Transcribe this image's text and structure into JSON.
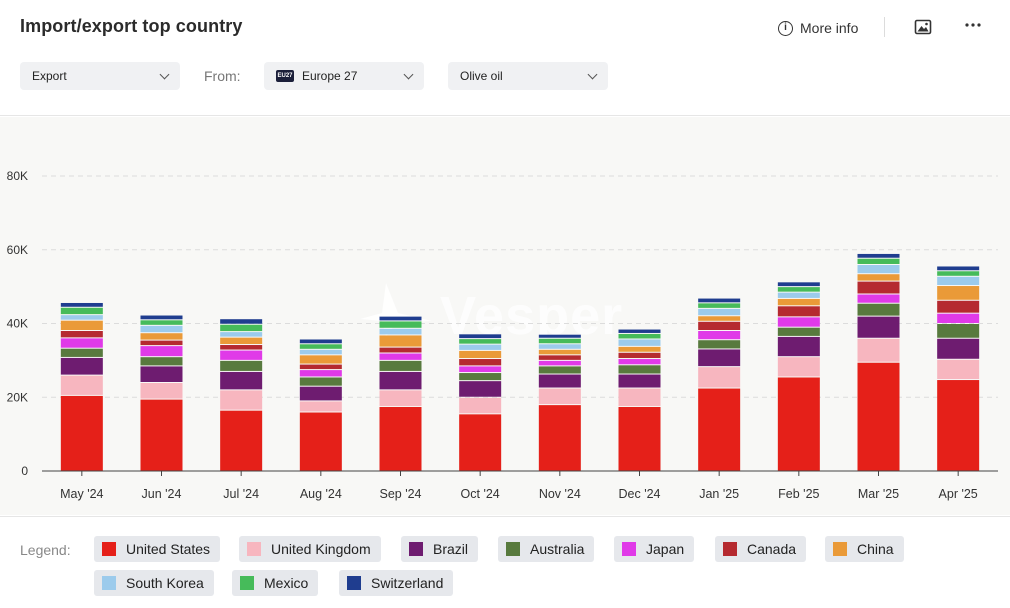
{
  "header": {
    "title": "Import/export top country",
    "more_info_label": "More info",
    "info_icon": "info-icon",
    "image_icon": "image-icon",
    "more_icon": "more-icon"
  },
  "filters": {
    "flow": "Export",
    "from_label": "From:",
    "origin_badge": "EU27",
    "origin": "Europe 27",
    "product": "Olive oil"
  },
  "watermark": "Vesper",
  "legend": {
    "label": "Legend:",
    "items": [
      {
        "name": "United States",
        "color": "#e52019"
      },
      {
        "name": "United Kingdom",
        "color": "#f7b6bf"
      },
      {
        "name": "Brazil",
        "color": "#6e1c70"
      },
      {
        "name": "Australia",
        "color": "#587a3e"
      },
      {
        "name": "Japan",
        "color": "#e03ae8"
      },
      {
        "name": "Canada",
        "color": "#b52a30"
      },
      {
        "name": "China",
        "color": "#ea9a38"
      },
      {
        "name": "South Korea",
        "color": "#9ccbec"
      },
      {
        "name": "Mexico",
        "color": "#46bb5a"
      },
      {
        "name": "Switzerland",
        "color": "#1f3d8f"
      }
    ]
  },
  "chart_data": {
    "type": "bar",
    "stacked": true,
    "title": "",
    "xlabel": "",
    "ylabel": "",
    "ylim": [
      0,
      80000
    ],
    "yticks": [
      0,
      20000,
      40000,
      60000,
      80000
    ],
    "ytick_labels": [
      "0",
      "20K",
      "40K",
      "60K",
      "80K"
    ],
    "grid": true,
    "categories": [
      "May '24",
      "Jun '24",
      "Jul '24",
      "Aug '24",
      "Sep '24",
      "Oct '24",
      "Nov '24",
      "Dec '24",
      "Jan '25",
      "Feb '25",
      "Mar '25",
      "Apr '25"
    ],
    "series": [
      {
        "name": "United States",
        "color": "#e52019",
        "values": [
          20500,
          19500,
          16500,
          16000,
          17500,
          15500,
          18000,
          17500,
          22500,
          25500,
          29500,
          24800
        ]
      },
      {
        "name": "United Kingdom",
        "color": "#f7b6bf",
        "values": [
          5500,
          4500,
          5500,
          3000,
          4500,
          4500,
          4500,
          5000,
          5800,
          5500,
          6500,
          5500
        ]
      },
      {
        "name": "Brazil",
        "color": "#6e1c70",
        "values": [
          4800,
          4500,
          5000,
          4000,
          5000,
          4500,
          3800,
          3800,
          4800,
          5500,
          6000,
          5700
        ]
      },
      {
        "name": "Australia",
        "color": "#587a3e",
        "values": [
          2500,
          2500,
          3000,
          2500,
          3000,
          2200,
          2200,
          2500,
          2500,
          2500,
          3500,
          4000
        ]
      },
      {
        "name": "Japan",
        "color": "#e03ae8",
        "values": [
          2800,
          3000,
          2800,
          2000,
          2000,
          1800,
          1500,
          1700,
          2500,
          2800,
          2500,
          2800
        ]
      },
      {
        "name": "Canada",
        "color": "#b52a30",
        "values": [
          2000,
          1500,
          1500,
          1500,
          1600,
          2000,
          1500,
          1700,
          2500,
          3000,
          3500,
          3500
        ]
      },
      {
        "name": "China",
        "color": "#ea9a38",
        "values": [
          2800,
          2000,
          2000,
          2500,
          3300,
          2200,
          1500,
          1600,
          1500,
          2000,
          2000,
          4000
        ]
      },
      {
        "name": "South Korea",
        "color": "#9ccbec",
        "values": [
          1500,
          2000,
          1500,
          1500,
          1800,
          1700,
          1500,
          2000,
          2000,
          1700,
          2500,
          2500
        ]
      },
      {
        "name": "Mexico",
        "color": "#46bb5a",
        "values": [
          2000,
          1500,
          2000,
          1500,
          2000,
          1500,
          1500,
          1500,
          1500,
          1500,
          1700,
          1500
        ]
      },
      {
        "name": "Switzerland",
        "color": "#1f3d8f",
        "values": [
          1300,
          1300,
          1500,
          1300,
          1300,
          1300,
          1100,
          1200,
          1300,
          1300,
          1300,
          1300
        ]
      }
    ]
  }
}
